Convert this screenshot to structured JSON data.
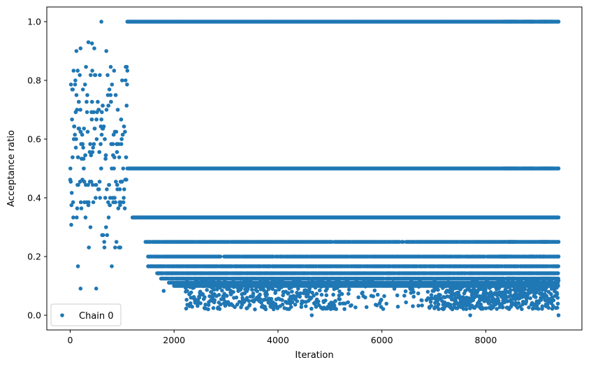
{
  "chart_data": {
    "type": "scatter",
    "title": "",
    "xlabel": "Iteration",
    "ylabel": "Acceptance ratio",
    "xlim": [
      -450,
      9850
    ],
    "ylim": [
      -0.05,
      1.05
    ],
    "x_ticks": [
      0,
      2000,
      4000,
      6000,
      8000
    ],
    "x_tick_labels": [
      "0",
      "2000",
      "4000",
      "6000",
      "8000"
    ],
    "y_ticks": [
      0.0,
      0.2,
      0.4,
      0.6,
      0.8,
      1.0
    ],
    "y_tick_labels": [
      "0.0",
      "0.2",
      "0.4",
      "0.6",
      "0.8",
      "1.0"
    ],
    "grid": false,
    "legend": {
      "placement": "lower-left",
      "entries": [
        "Chain 0"
      ]
    },
    "color": "#1f77b4",
    "series": [
      {
        "name": "Chain 0",
        "marker": "circle",
        "segments": [
          {
            "x_range": [
              0,
              1100
            ],
            "y_levels": [
              0.909,
              0.9,
              0.857,
              0.846,
              0.833,
              0.818,
              0.8,
              0.786,
              0.769,
              0.75,
              0.727,
              0.714,
              0.7,
              0.692,
              0.667,
              0.643,
              0.636,
              0.625,
              0.615,
              0.6,
              0.583,
              0.571,
              0.556,
              0.545,
              0.538,
              0.533,
              0.5,
              0.462,
              0.455,
              0.444,
              0.429,
              0.417,
              0.4,
              0.385,
              0.375,
              0.364,
              0.333,
              0.308,
              0.3,
              0.273,
              0.25,
              0.231
            ],
            "pattern": "dense scatter across levels"
          },
          {
            "x_range": [
              1100,
              9400
            ],
            "y_levels": [
              1.0,
              0.5,
              0.333,
              0.25,
              0.2,
              0.167,
              0.143,
              0.125,
              0.111,
              0.1
            ],
            "pattern": "horizontal bands"
          },
          {
            "x_range": [
              2200,
              9400
            ],
            "y_range": [
              0.0,
              0.12
            ],
            "pattern": "dense low-ratio cloud"
          }
        ],
        "sample_points": [
          [
            600,
            1.0
          ],
          [
            350,
            0.93
          ],
          [
            420,
            0.926
          ],
          [
            120,
            0.9
          ],
          [
            200,
            0.909
          ],
          [
            150,
            0.167
          ],
          [
            200,
            0.091
          ],
          [
            500,
            0.091
          ],
          [
            800,
            0.167
          ],
          [
            950,
            0.231
          ],
          [
            1150,
            1.0
          ],
          [
            1200,
            0.333
          ],
          [
            1450,
            0.25
          ],
          [
            1500,
            0.2
          ],
          [
            1500,
            0.167
          ],
          [
            1800,
            0.083
          ],
          [
            4650,
            0.0
          ],
          [
            7700,
            0.0
          ],
          [
            9400,
            0.0
          ],
          [
            9400,
            1.0
          ],
          [
            9400,
            0.5
          ],
          [
            9400,
            0.333
          ],
          [
            9400,
            0.25
          ],
          [
            9400,
            0.2
          ]
        ]
      }
    ]
  }
}
